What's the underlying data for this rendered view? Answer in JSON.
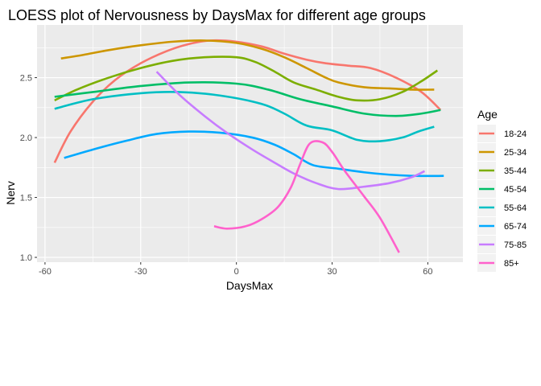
{
  "chart_data": {
    "type": "line",
    "title": "LOESS plot of Nervousness by DaysMax for different age groups",
    "xlabel": "DaysMax",
    "ylabel": "Nerv",
    "xlim": [
      -62.5,
      71
    ],
    "ylim": [
      0.96,
      2.94
    ],
    "x_ticks": [
      -60,
      -30,
      0,
      30,
      60
    ],
    "x_tick_labels": [
      "-60",
      "-30",
      "0",
      "30",
      "60"
    ],
    "y_ticks": [
      1.0,
      1.5,
      2.0,
      2.5
    ],
    "y_tick_labels": [
      "1.0",
      "1.5",
      "2.0",
      "2.5"
    ],
    "grid": true,
    "legend": {
      "title": "Age",
      "position": "right"
    },
    "series": [
      {
        "name": "18-24",
        "color": "#F8766D",
        "points": [
          [
            -57,
            1.79
          ],
          [
            -52,
            2.05
          ],
          [
            -45,
            2.3
          ],
          [
            -38,
            2.48
          ],
          [
            -30,
            2.62
          ],
          [
            -22,
            2.72
          ],
          [
            -15,
            2.78
          ],
          [
            -8,
            2.81
          ],
          [
            0,
            2.8
          ],
          [
            8,
            2.76
          ],
          [
            15,
            2.7
          ],
          [
            22,
            2.65
          ],
          [
            28,
            2.62
          ],
          [
            35,
            2.6
          ],
          [
            42,
            2.58
          ],
          [
            50,
            2.5
          ],
          [
            58,
            2.38
          ],
          [
            64,
            2.23
          ]
        ]
      },
      {
        "name": "25-34",
        "color": "#CD9600",
        "points": [
          [
            -55,
            2.66
          ],
          [
            -48,
            2.69
          ],
          [
            -40,
            2.73
          ],
          [
            -30,
            2.77
          ],
          [
            -20,
            2.8
          ],
          [
            -10,
            2.81
          ],
          [
            0,
            2.79
          ],
          [
            8,
            2.74
          ],
          [
            15,
            2.67
          ],
          [
            22,
            2.58
          ],
          [
            28,
            2.5
          ],
          [
            32,
            2.46
          ],
          [
            40,
            2.42
          ],
          [
            48,
            2.41
          ],
          [
            55,
            2.4
          ],
          [
            62,
            2.4
          ]
        ]
      },
      {
        "name": "35-44",
        "color": "#7CAE00",
        "points": [
          [
            -57,
            2.31
          ],
          [
            -50,
            2.4
          ],
          [
            -40,
            2.5
          ],
          [
            -30,
            2.58
          ],
          [
            -20,
            2.64
          ],
          [
            -10,
            2.67
          ],
          [
            0,
            2.67
          ],
          [
            6,
            2.63
          ],
          [
            12,
            2.55
          ],
          [
            18,
            2.46
          ],
          [
            25,
            2.4
          ],
          [
            32,
            2.34
          ],
          [
            38,
            2.31
          ],
          [
            45,
            2.32
          ],
          [
            52,
            2.38
          ],
          [
            58,
            2.47
          ],
          [
            63,
            2.56
          ]
        ]
      },
      {
        "name": "45-54",
        "color": "#00BE67",
        "points": [
          [
            -57,
            2.34
          ],
          [
            -45,
            2.38
          ],
          [
            -30,
            2.43
          ],
          [
            -15,
            2.46
          ],
          [
            0,
            2.45
          ],
          [
            10,
            2.4
          ],
          [
            20,
            2.32
          ],
          [
            30,
            2.26
          ],
          [
            40,
            2.2
          ],
          [
            50,
            2.18
          ],
          [
            58,
            2.2
          ],
          [
            64,
            2.23
          ]
        ]
      },
      {
        "name": "55-64",
        "color": "#00BFC4",
        "points": [
          [
            -57,
            2.24
          ],
          [
            -45,
            2.32
          ],
          [
            -30,
            2.37
          ],
          [
            -18,
            2.38
          ],
          [
            -5,
            2.35
          ],
          [
            8,
            2.28
          ],
          [
            15,
            2.2
          ],
          [
            22,
            2.1
          ],
          [
            30,
            2.06
          ],
          [
            38,
            1.98
          ],
          [
            45,
            1.97
          ],
          [
            52,
            2.0
          ],
          [
            57,
            2.05
          ],
          [
            62,
            2.09
          ]
        ]
      },
      {
        "name": "65-74",
        "color": "#00A9FF",
        "points": [
          [
            -54,
            1.83
          ],
          [
            -45,
            1.9
          ],
          [
            -35,
            1.97
          ],
          [
            -25,
            2.03
          ],
          [
            -15,
            2.05
          ],
          [
            -5,
            2.04
          ],
          [
            5,
            2.0
          ],
          [
            12,
            1.94
          ],
          [
            18,
            1.86
          ],
          [
            24,
            1.77
          ],
          [
            32,
            1.74
          ],
          [
            40,
            1.71
          ],
          [
            48,
            1.69
          ],
          [
            56,
            1.68
          ],
          [
            65,
            1.68
          ]
        ]
      },
      {
        "name": "75-85",
        "color": "#C77CFF",
        "points": [
          [
            -25,
            2.55
          ],
          [
            -18,
            2.36
          ],
          [
            -10,
            2.18
          ],
          [
            -3,
            2.04
          ],
          [
            5,
            1.9
          ],
          [
            12,
            1.79
          ],
          [
            18,
            1.7
          ],
          [
            25,
            1.62
          ],
          [
            32,
            1.57
          ],
          [
            40,
            1.59
          ],
          [
            48,
            1.62
          ],
          [
            55,
            1.67
          ],
          [
            59,
            1.72
          ]
        ]
      },
      {
        "name": "85+",
        "color": "#FF61CC",
        "points": [
          [
            -7,
            1.26
          ],
          [
            -3,
            1.24
          ],
          [
            3,
            1.26
          ],
          [
            8,
            1.32
          ],
          [
            13,
            1.42
          ],
          [
            17,
            1.58
          ],
          [
            20,
            1.78
          ],
          [
            23,
            1.95
          ],
          [
            27,
            1.96
          ],
          [
            30,
            1.88
          ],
          [
            34,
            1.72
          ],
          [
            40,
            1.51
          ],
          [
            45,
            1.33
          ],
          [
            51,
            1.04
          ]
        ]
      }
    ]
  }
}
